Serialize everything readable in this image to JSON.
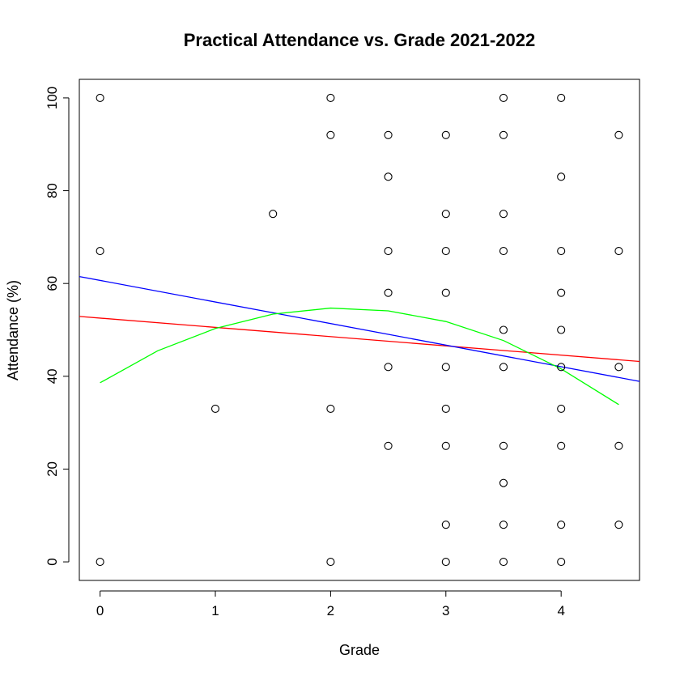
{
  "chart_data": {
    "type": "scatter",
    "title": "Practical Attendance vs. Grade 2021-2022",
    "xlabel": "Grade",
    "ylabel": "Attendance (%)",
    "xlim": [
      -0.18,
      4.68
    ],
    "ylim": [
      -4,
      104
    ],
    "x_ticks": [
      "0",
      "1",
      "2",
      "3",
      "4"
    ],
    "y_ticks": [
      "0",
      "20",
      "40",
      "60",
      "80",
      "100"
    ],
    "grid": false,
    "legend": "none",
    "points": [
      {
        "x": 0,
        "y": 100
      },
      {
        "x": 0,
        "y": 67
      },
      {
        "x": 0,
        "y": 0
      },
      {
        "x": 1,
        "y": 33
      },
      {
        "x": 1.5,
        "y": 75
      },
      {
        "x": 2,
        "y": 100
      },
      {
        "x": 2,
        "y": 92
      },
      {
        "x": 2,
        "y": 33
      },
      {
        "x": 2,
        "y": 0
      },
      {
        "x": 2.5,
        "y": 92
      },
      {
        "x": 2.5,
        "y": 83
      },
      {
        "x": 2.5,
        "y": 67
      },
      {
        "x": 2.5,
        "y": 58
      },
      {
        "x": 2.5,
        "y": 42
      },
      {
        "x": 2.5,
        "y": 25
      },
      {
        "x": 3,
        "y": 92
      },
      {
        "x": 3,
        "y": 75
      },
      {
        "x": 3,
        "y": 67
      },
      {
        "x": 3,
        "y": 58
      },
      {
        "x": 3,
        "y": 42
      },
      {
        "x": 3,
        "y": 33
      },
      {
        "x": 3,
        "y": 25
      },
      {
        "x": 3,
        "y": 8
      },
      {
        "x": 3,
        "y": 0
      },
      {
        "x": 3.5,
        "y": 100
      },
      {
        "x": 3.5,
        "y": 92
      },
      {
        "x": 3.5,
        "y": 75
      },
      {
        "x": 3.5,
        "y": 67
      },
      {
        "x": 3.5,
        "y": 50
      },
      {
        "x": 3.5,
        "y": 42
      },
      {
        "x": 3.5,
        "y": 25
      },
      {
        "x": 3.5,
        "y": 17
      },
      {
        "x": 3.5,
        "y": 8
      },
      {
        "x": 3.5,
        "y": 0
      },
      {
        "x": 4,
        "y": 100
      },
      {
        "x": 4,
        "y": 83
      },
      {
        "x": 4,
        "y": 67
      },
      {
        "x": 4,
        "y": 58
      },
      {
        "x": 4,
        "y": 50
      },
      {
        "x": 4,
        "y": 42
      },
      {
        "x": 4,
        "y": 33
      },
      {
        "x": 4,
        "y": 25
      },
      {
        "x": 4,
        "y": 8
      },
      {
        "x": 4,
        "y": 0
      },
      {
        "x": 4.5,
        "y": 92
      },
      {
        "x": 4.5,
        "y": 67
      },
      {
        "x": 4.5,
        "y": 42
      },
      {
        "x": 4.5,
        "y": 25
      },
      {
        "x": 4.5,
        "y": 8
      }
    ],
    "lines": [
      {
        "color": "#ff0000",
        "points": [
          [
            -0.18,
            52.9
          ],
          [
            4.68,
            43.2
          ]
        ]
      },
      {
        "color": "#0000ff",
        "points": [
          [
            -0.18,
            61.5
          ],
          [
            4.68,
            38.9
          ]
        ]
      },
      {
        "color": "#00ff00",
        "points": [
          [
            0,
            38.6
          ],
          [
            0.5,
            45.5
          ],
          [
            1,
            50.3
          ],
          [
            1.5,
            53.4
          ],
          [
            2,
            54.7
          ],
          [
            2.5,
            54.1
          ],
          [
            3,
            51.8
          ],
          [
            3.5,
            47.7
          ],
          [
            4,
            41.6
          ],
          [
            4.5,
            33.9
          ]
        ]
      }
    ]
  }
}
